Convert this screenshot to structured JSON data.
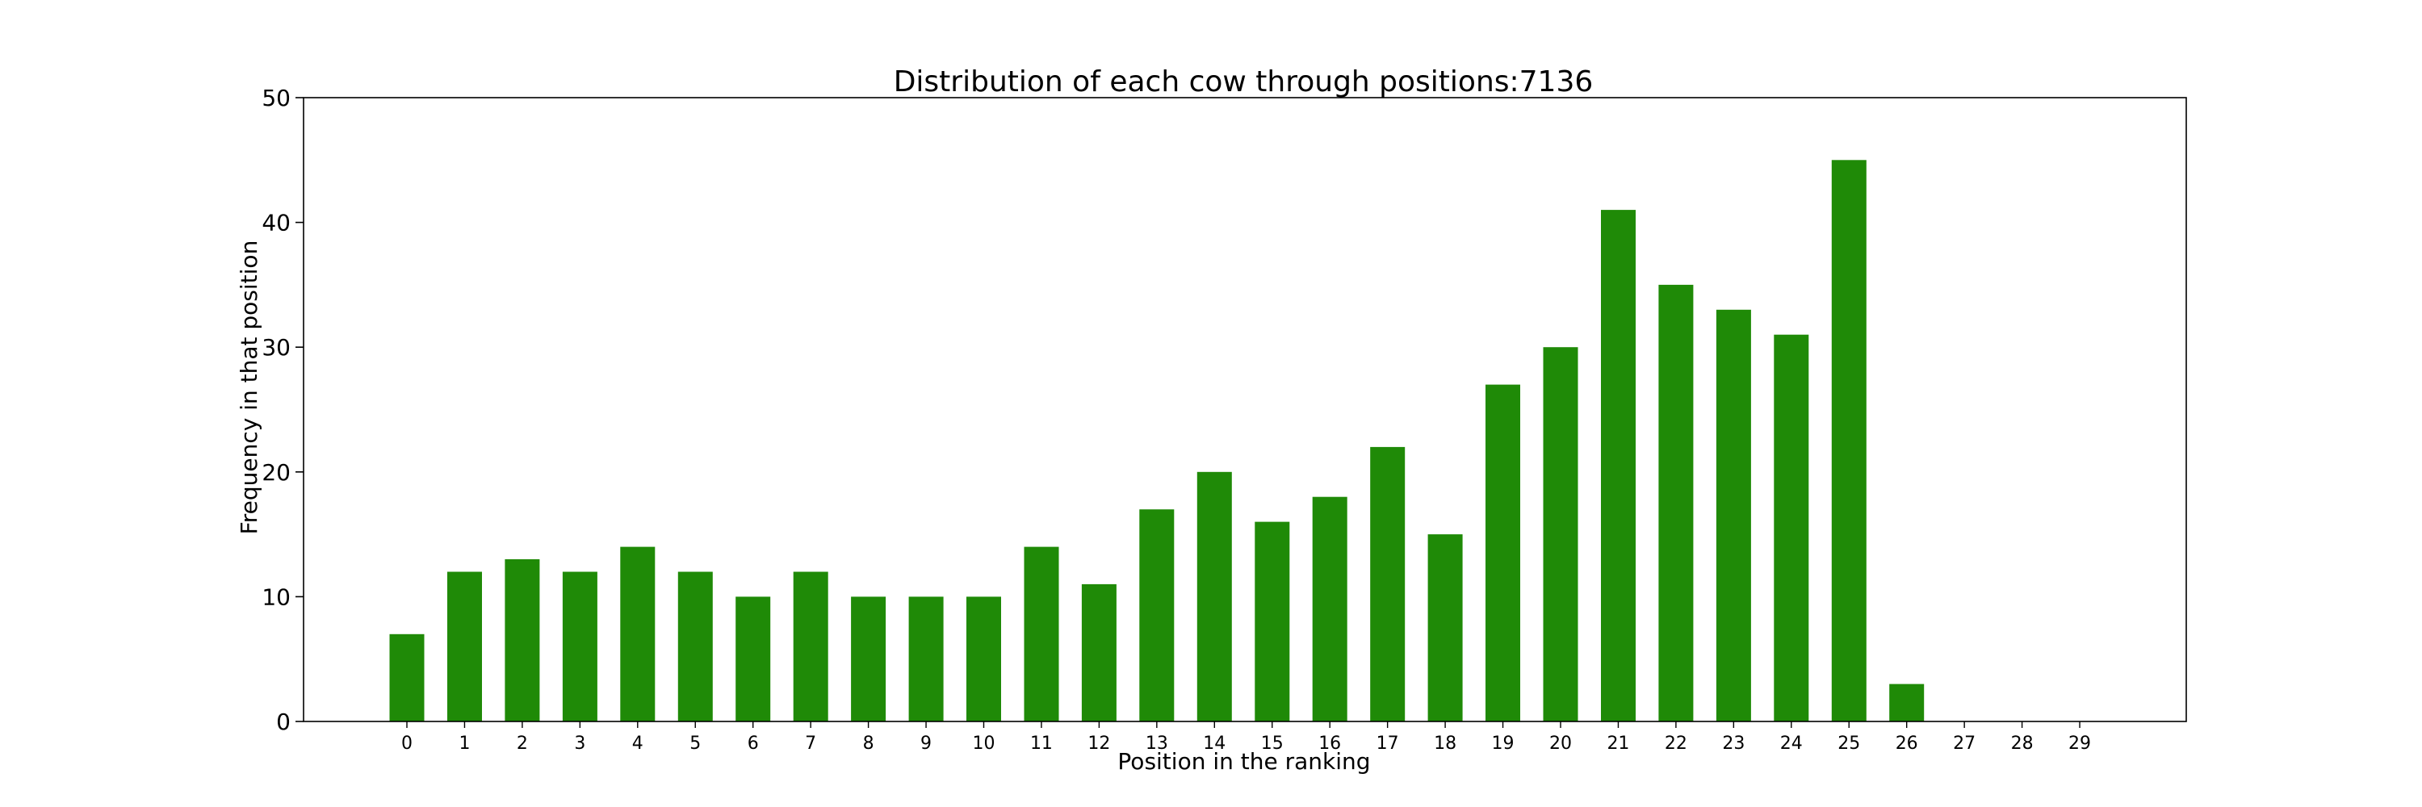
{
  "chart_data": {
    "type": "bar",
    "title": "Distribution of each cow through positions:7136",
    "xlabel": "Position in the ranking",
    "ylabel": "Frequency in that position",
    "categories": [
      "0",
      "1",
      "2",
      "3",
      "4",
      "5",
      "6",
      "7",
      "8",
      "9",
      "10",
      "11",
      "12",
      "13",
      "14",
      "15",
      "16",
      "17",
      "18",
      "19",
      "20",
      "21",
      "22",
      "23",
      "24",
      "25",
      "26",
      "27",
      "28",
      "29"
    ],
    "values": [
      7,
      12,
      13,
      12,
      14,
      12,
      10,
      12,
      10,
      10,
      10,
      14,
      11,
      17,
      20,
      16,
      18,
      22,
      15,
      27,
      30,
      41,
      35,
      33,
      31,
      45,
      3,
      0,
      0,
      0
    ],
    "ylim": [
      0,
      50
    ],
    "yticks": [
      0,
      10,
      20,
      30,
      40,
      50
    ],
    "bar_color": "#1f8a07",
    "grid": false,
    "legend": "none"
  }
}
